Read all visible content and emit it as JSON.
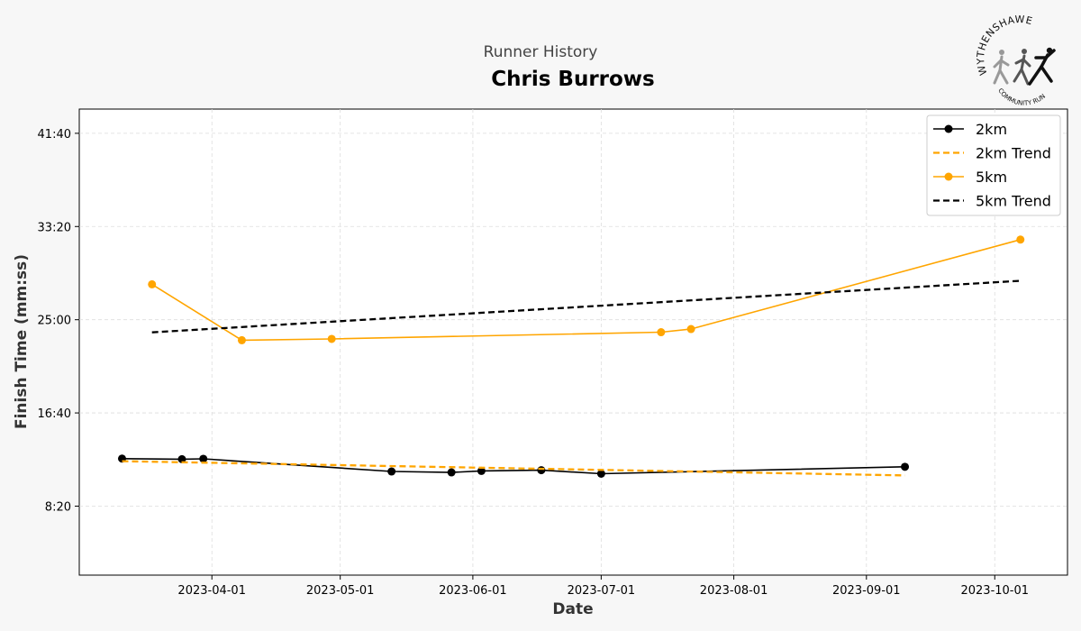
{
  "chart_data": {
    "type": "line",
    "subtitle": "Runner History",
    "title": "Chris Burrows",
    "xlabel": "Date",
    "ylabel": "Finish Time (mm:ss)",
    "x_range": [
      "2023-03-01",
      "2023-10-18"
    ],
    "y_range_seconds": [
      130,
      2630
    ],
    "x_ticks": [
      "2023-04-01",
      "2023-05-01",
      "2023-06-01",
      "2023-07-01",
      "2023-08-01",
      "2023-09-01",
      "2023-10-01"
    ],
    "y_ticks": [
      {
        "value": 500,
        "label": "8:20"
      },
      {
        "value": 1000,
        "label": "16:40"
      },
      {
        "value": 1500,
        "label": "25:00"
      },
      {
        "value": 2000,
        "label": "33:20"
      },
      {
        "value": 2500,
        "label": "41:40"
      }
    ],
    "grid": true,
    "legend_position": "top-right",
    "series": [
      {
        "name": "2km",
        "color": "#000000",
        "style": "solid",
        "marker": "circle",
        "x": [
          "2023-03-11",
          "2023-03-25",
          "2023-03-30",
          "2023-05-13",
          "2023-05-27",
          "2023-06-03",
          "2023-06-17",
          "2023-07-01",
          "2023-09-10"
        ],
        "y": [
          755,
          752,
          754,
          686,
          681,
          689,
          693,
          674,
          711
        ]
      },
      {
        "name": "2km Trend",
        "color": "#ffa500",
        "style": "dashed",
        "marker": "none",
        "x": [
          "2023-03-11",
          "2023-09-10"
        ],
        "y": [
          741,
          665
        ]
      },
      {
        "name": "5km",
        "color": "#ffa500",
        "style": "solid",
        "marker": "circle",
        "x": [
          "2023-03-18",
          "2023-04-08",
          "2023-04-29",
          "2023-07-15",
          "2023-07-22",
          "2023-10-07"
        ],
        "y": [
          1690,
          1390,
          1397,
          1433,
          1450,
          1930
        ]
      },
      {
        "name": "5km Trend",
        "color": "#000000",
        "style": "dashed",
        "marker": "none",
        "x": [
          "2023-03-18",
          "2023-10-07"
        ],
        "y": [
          1432,
          1709
        ]
      }
    ]
  },
  "logo": {
    "text": "WYTHENSHAWE",
    "subtext": "COMMUNITY RUN"
  }
}
